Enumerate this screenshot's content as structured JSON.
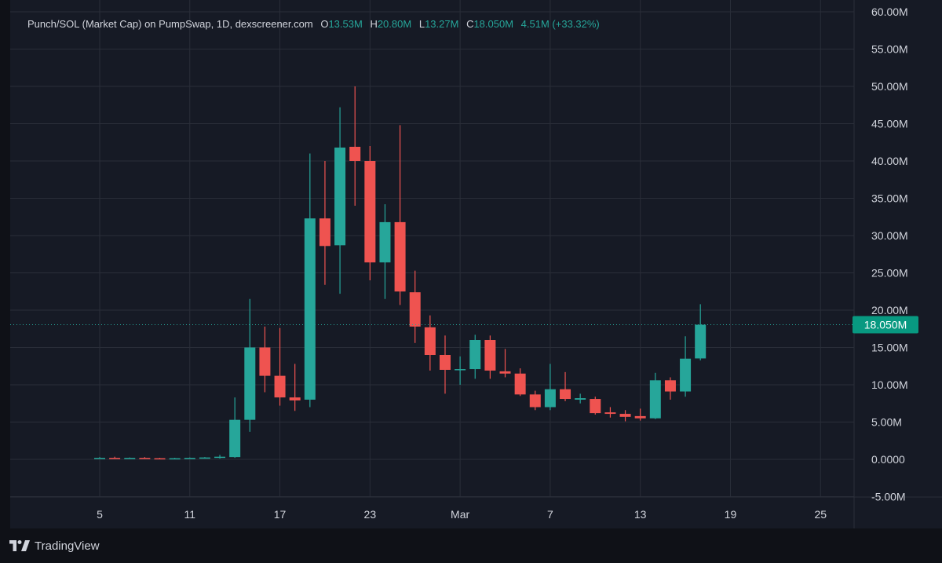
{
  "header": {
    "title": "Punch/SOL (Market Cap) on PumpSwap, 1D, dexscreener.com",
    "open_label": "O",
    "open_value": "13.53M",
    "high_label": "H",
    "high_value": "20.80M",
    "low_label": "L",
    "low_value": "13.27M",
    "close_label": "C",
    "close_value": "18.050M",
    "change_value": "4.51M (+33.32%)"
  },
  "footer": {
    "brand": "TradingView"
  },
  "colors": {
    "up": "#26a69a",
    "down": "#ef5350",
    "background": "#161a25",
    "grid": "#2a2e39",
    "text": "#d1d4dc"
  },
  "chart_data": {
    "type": "candlestick",
    "title": "Punch/SOL (Market Cap) on PumpSwap, 1D, dexscreener.com",
    "ylim": [
      -5000000,
      60000000
    ],
    "y_ticks": [
      -5000000,
      0,
      5000000,
      10000000,
      15000000,
      20000000,
      25000000,
      30000000,
      35000000,
      40000000,
      45000000,
      50000000,
      55000000,
      60000000
    ],
    "y_tick_labels": [
      "-5.00M",
      "0.0000",
      "5.00M",
      "10.00M",
      "15.00M",
      "20.00M",
      "25.00M",
      "30.00M",
      "35.00M",
      "40.00M",
      "45.00M",
      "50.00M",
      "55.00M",
      "60.00M"
    ],
    "x_ticks": [
      "5",
      "11",
      "17",
      "23",
      "Mar",
      "7",
      "13",
      "19",
      "25"
    ],
    "x_tick_dates": [
      "Feb 5",
      "Feb 11",
      "Feb 17",
      "Feb 23",
      "Mar 1",
      "Mar 7",
      "Mar 13",
      "Mar 19",
      "Mar 25"
    ],
    "last_price_label": "18.050M",
    "last_price": 18050000,
    "grid": true,
    "candles": [
      {
        "date": "Feb 5",
        "o": 0.15,
        "h": 0.3,
        "l": 0.05,
        "c": 0.2
      },
      {
        "date": "Feb 6",
        "o": 0.2,
        "h": 0.35,
        "l": 0.05,
        "c": 0.15
      },
      {
        "date": "Feb 7",
        "o": 0.15,
        "h": 0.25,
        "l": 0.05,
        "c": 0.2
      },
      {
        "date": "Feb 8",
        "o": 0.2,
        "h": 0.3,
        "l": 0.05,
        "c": 0.15
      },
      {
        "date": "Feb 9",
        "o": 0.15,
        "h": 0.2,
        "l": 0.0,
        "c": 0.1
      },
      {
        "date": "Feb 10",
        "o": 0.1,
        "h": 0.2,
        "l": 0.0,
        "c": 0.15
      },
      {
        "date": "Feb 11",
        "o": 0.15,
        "h": 0.25,
        "l": 0.1,
        "c": 0.2
      },
      {
        "date": "Feb 12",
        "o": 0.2,
        "h": 0.3,
        "l": 0.1,
        "c": 0.25
      },
      {
        "date": "Feb 13",
        "o": 0.2,
        "h": 0.6,
        "l": 0.1,
        "c": 0.35
      },
      {
        "date": "Feb 14",
        "o": 0.3,
        "h": 8.3,
        "l": 0.2,
        "c": 5.3
      },
      {
        "date": "Feb 15",
        "o": 5.3,
        "h": 21.5,
        "l": 3.7,
        "c": 15.0
      },
      {
        "date": "Feb 16",
        "o": 15.0,
        "h": 17.8,
        "l": 9.0,
        "c": 11.2
      },
      {
        "date": "Feb 17",
        "o": 11.2,
        "h": 17.6,
        "l": 7.2,
        "c": 8.3
      },
      {
        "date": "Feb 18",
        "o": 8.3,
        "h": 12.8,
        "l": 6.5,
        "c": 7.9
      },
      {
        "date": "Feb 19",
        "o": 8.0,
        "h": 41.0,
        "l": 7.0,
        "c": 32.3
      },
      {
        "date": "Feb 20",
        "o": 32.3,
        "h": 40.0,
        "l": 23.4,
        "c": 28.6
      },
      {
        "date": "Feb 21",
        "o": 28.7,
        "h": 47.2,
        "l": 22.2,
        "c": 41.8
      },
      {
        "date": "Feb 22",
        "o": 41.9,
        "h": 50.0,
        "l": 34.0,
        "c": 40.0
      },
      {
        "date": "Feb 23",
        "o": 40.0,
        "h": 42.0,
        "l": 24.0,
        "c": 26.4
      },
      {
        "date": "Feb 24",
        "o": 26.4,
        "h": 34.2,
        "l": 21.5,
        "c": 31.8
      },
      {
        "date": "Feb 25",
        "o": 31.8,
        "h": 44.8,
        "l": 20.7,
        "c": 22.5
      },
      {
        "date": "Feb 26",
        "o": 22.4,
        "h": 25.3,
        "l": 15.6,
        "c": 17.8
      },
      {
        "date": "Feb 27",
        "o": 17.7,
        "h": 19.3,
        "l": 11.9,
        "c": 14.0
      },
      {
        "date": "Feb 28",
        "o": 14.0,
        "h": 16.6,
        "l": 8.8,
        "c": 12.0
      },
      {
        "date": "Mar 1",
        "o": 12.0,
        "h": 13.8,
        "l": 10.0,
        "c": 12.1
      },
      {
        "date": "Mar 2",
        "o": 12.1,
        "h": 16.7,
        "l": 10.8,
        "c": 16.0
      },
      {
        "date": "Mar 3",
        "o": 16.0,
        "h": 16.6,
        "l": 10.8,
        "c": 11.9
      },
      {
        "date": "Mar 4",
        "o": 11.8,
        "h": 14.8,
        "l": 11.0,
        "c": 11.5
      },
      {
        "date": "Mar 5",
        "o": 11.5,
        "h": 12.2,
        "l": 8.5,
        "c": 8.7
      },
      {
        "date": "Mar 6",
        "o": 8.7,
        "h": 9.2,
        "l": 6.6,
        "c": 7.0
      },
      {
        "date": "Mar 7",
        "o": 7.0,
        "h": 12.8,
        "l": 6.6,
        "c": 9.4
      },
      {
        "date": "Mar 8",
        "o": 9.4,
        "h": 11.7,
        "l": 7.8,
        "c": 8.1
      },
      {
        "date": "Mar 9",
        "o": 8.0,
        "h": 8.8,
        "l": 7.5,
        "c": 8.2
      },
      {
        "date": "Mar 10",
        "o": 8.1,
        "h": 8.4,
        "l": 6.0,
        "c": 6.2
      },
      {
        "date": "Mar 11",
        "o": 6.3,
        "h": 7.0,
        "l": 5.6,
        "c": 6.1
      },
      {
        "date": "Mar 12",
        "o": 6.1,
        "h": 6.6,
        "l": 5.1,
        "c": 5.7
      },
      {
        "date": "Mar 13",
        "o": 5.8,
        "h": 6.8,
        "l": 5.2,
        "c": 5.5
      },
      {
        "date": "Mar 14",
        "o": 5.5,
        "h": 11.6,
        "l": 5.4,
        "c": 10.6
      },
      {
        "date": "Mar 15",
        "o": 10.6,
        "h": 11.0,
        "l": 8.0,
        "c": 9.1
      },
      {
        "date": "Mar 16",
        "o": 9.1,
        "h": 16.5,
        "l": 8.4,
        "c": 13.5
      },
      {
        "date": "Mar 17",
        "o": 13.53,
        "h": 20.8,
        "l": 13.27,
        "c": 18.05
      }
    ]
  }
}
